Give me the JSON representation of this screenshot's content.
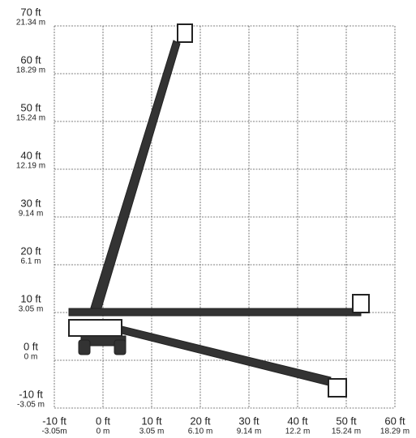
{
  "y_axis": {
    "labels": [
      {
        "ft": "70 ft",
        "m": "21.34 m"
      },
      {
        "ft": "60 ft",
        "m": "18.29 m"
      },
      {
        "ft": "50 ft",
        "m": "15.24 m"
      },
      {
        "ft": "40 ft",
        "m": "12.19 m"
      },
      {
        "ft": "30 ft",
        "m": "9.14 m"
      },
      {
        "ft": "20 ft",
        "m": "6.1 m"
      },
      {
        "ft": "10 ft",
        "m": "3.05 m"
      },
      {
        "ft": "0 ft",
        "m": "0 m"
      },
      {
        "ft": "-10 ft",
        "m": "-3.05 m"
      }
    ]
  },
  "x_axis": {
    "labels": [
      {
        "ft": "-10 ft",
        "m": "-3.05m"
      },
      {
        "ft": "0 ft",
        "m": "0 m"
      },
      {
        "ft": "10 ft",
        "m": "3.05 m"
      },
      {
        "ft": "20 ft",
        "m": "6.10 m"
      },
      {
        "ft": "30 ft",
        "m": "9.14 m"
      },
      {
        "ft": "40 ft",
        "m": "12.2 m"
      },
      {
        "ft": "50 ft",
        "m": "15.24 m"
      },
      {
        "ft": "60 ft",
        "m": "18.29 m"
      }
    ]
  }
}
